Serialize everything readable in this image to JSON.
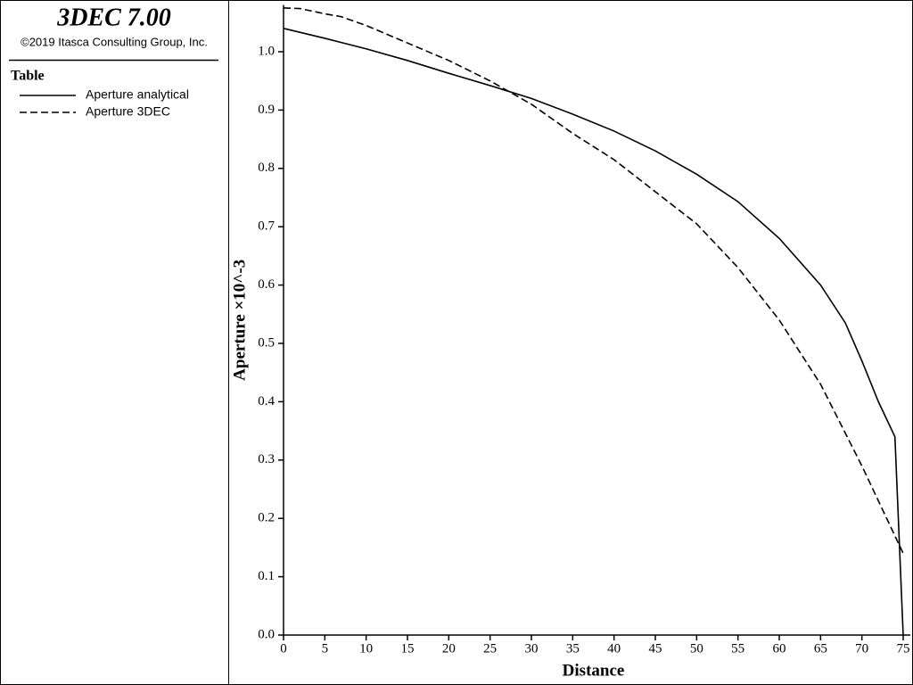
{
  "chart_data": {
    "type": "line",
    "header_title": "3DEC 7.00",
    "copyright": "©2019 Itasca Consulting Group, Inc.",
    "legend_title": "Table",
    "xlabel": "Distance",
    "ylabel": "Aperture ×10^-3",
    "xlim": [
      0,
      75
    ],
    "ylim": [
      0,
      1.08
    ],
    "xticks": [
      0,
      5,
      10,
      15,
      20,
      25,
      30,
      35,
      40,
      45,
      50,
      55,
      60,
      65,
      70,
      75
    ],
    "yticks": [
      {
        "value": 0,
        "label": "0.0"
      },
      0.1,
      0.2,
      0.3,
      0.4,
      0.5,
      0.6,
      0.7,
      0.8,
      0.9,
      {
        "value": 1,
        "label": "1.0"
      }
    ],
    "series": [
      {
        "name": "Aperture analytical",
        "color": "#000000",
        "dashed": false,
        "x": [
          0,
          5,
          10,
          15,
          20,
          25,
          30,
          35,
          40,
          45,
          50,
          55,
          60,
          65,
          68,
          70,
          72,
          73,
          74,
          75
        ],
        "values": [
          1.04,
          1.023,
          1.005,
          0.985,
          0.963,
          0.942,
          0.92,
          0.893,
          0.864,
          0.83,
          0.79,
          0.743,
          0.68,
          0.6,
          0.535,
          0.47,
          0.4,
          0.37,
          0.34,
          0.0
        ]
      },
      {
        "name": "Aperture 3DEC",
        "color": "#000000",
        "dashed": true,
        "x": [
          0,
          2,
          5,
          7,
          10,
          15,
          20,
          25,
          30,
          35,
          40,
          45,
          50,
          55,
          60,
          65,
          70,
          73,
          75
        ],
        "values": [
          1.075,
          1.074,
          1.065,
          1.06,
          1.045,
          1.015,
          0.985,
          0.95,
          0.91,
          0.86,
          0.815,
          0.76,
          0.705,
          0.63,
          0.54,
          0.43,
          0.29,
          0.2,
          0.14
        ]
      }
    ]
  }
}
